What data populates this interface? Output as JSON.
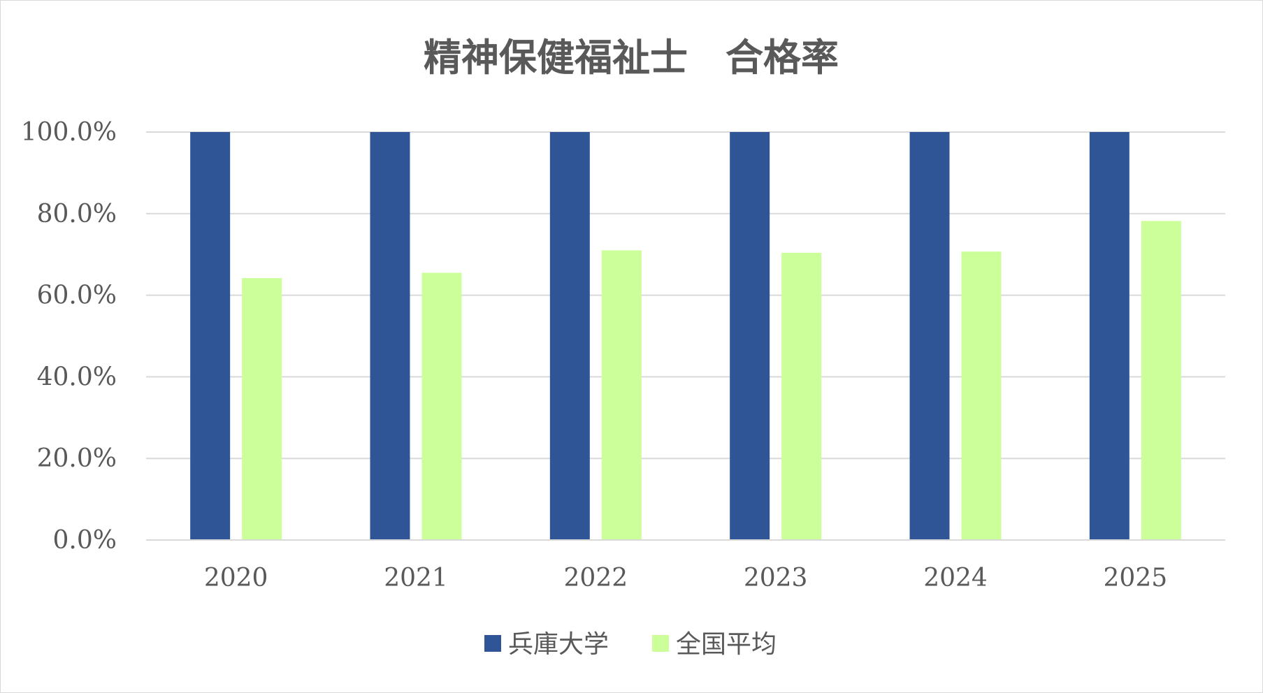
{
  "chart_data": {
    "type": "bar",
    "title": "精神保健福祉士　合格率",
    "xlabel": "",
    "ylabel": "",
    "categories": [
      "2020",
      "2021",
      "2022",
      "2023",
      "2024",
      "2025"
    ],
    "series": [
      {
        "name": "兵庫大学",
        "color": "#2f5597",
        "values": [
          100.0,
          100.0,
          100.0,
          100.0,
          100.0,
          100.0
        ]
      },
      {
        "name": "全国平均",
        "color": "#ccff99",
        "values": [
          64.2,
          65.5,
          71.0,
          70.4,
          70.7,
          78.2
        ]
      }
    ],
    "ylim": [
      0,
      100
    ],
    "y_ticks": [
      {
        "value": 0,
        "label": "0.0%"
      },
      {
        "value": 20,
        "label": "20.0%"
      },
      {
        "value": 40,
        "label": "40.0%"
      },
      {
        "value": 60,
        "label": "60.0%"
      },
      {
        "value": 80,
        "label": "80.0%"
      },
      {
        "value": 100,
        "label": "100.0%"
      }
    ],
    "grid": true,
    "legend_position": "bottom"
  }
}
